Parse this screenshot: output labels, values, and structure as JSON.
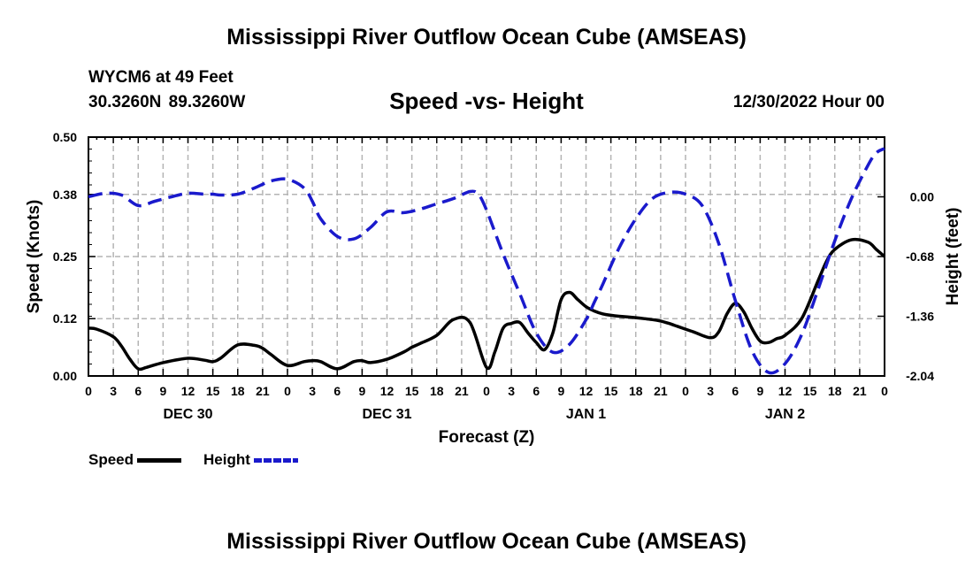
{
  "page": {
    "title": "Mississippi River Outflow Ocean Cube (AMSEAS)",
    "bottom_title": "Mississippi River Outflow Ocean Cube (AMSEAS)",
    "station": "WYCM6 at 49 Feet",
    "coordinates": "30.3260N  89.3260W",
    "subtitle": "Speed -vs- Height",
    "datetime": "12/30/2022 Hour 00"
  },
  "colors": {
    "speed": "#000000",
    "height": "#1a1acc",
    "grid": "#b4b4b4"
  },
  "chart_data": {
    "type": "line",
    "title": "Speed -vs- Height",
    "xlabel": "Forecast (Z)",
    "ylabel": "Speed (Knots)",
    "y2label": "Height (feet)",
    "xlim": [
      0,
      96
    ],
    "ylim": [
      0,
      0.5
    ],
    "y2lim": [
      -2.04,
      0.68
    ],
    "yticks": [
      "0.00",
      "0.12",
      "0.25",
      "0.38",
      "0.50"
    ],
    "y2ticks": [
      "-2.04",
      "-1.36",
      "-0.68",
      "0.00"
    ],
    "xtick_labels": [
      "0",
      "3",
      "6",
      "9",
      "12",
      "15",
      "18",
      "21",
      "0",
      "3",
      "6",
      "9",
      "12",
      "15",
      "18",
      "21",
      "0",
      "3",
      "6",
      "9",
      "12",
      "15",
      "18",
      "21",
      "0",
      "3",
      "6",
      "9",
      "12",
      "15",
      "18",
      "21",
      "0"
    ],
    "day_labels": [
      {
        "label": "DEC 30",
        "hour": 12
      },
      {
        "label": "DEC 31",
        "hour": 36
      },
      {
        "label": "JAN 1",
        "hour": 60
      },
      {
        "label": "JAN 2",
        "hour": 84
      }
    ],
    "grid": true,
    "legend": [
      {
        "name": "Speed",
        "style": "solid"
      },
      {
        "name": "Height",
        "style": "dashed"
      }
    ],
    "series": [
      {
        "name": "Speed",
        "axis": "left",
        "x": [
          0,
          1,
          3,
          4,
          5,
          6,
          7,
          9,
          12,
          14,
          15,
          16,
          18,
          20,
          21,
          22,
          24,
          26,
          27,
          28,
          30,
          32,
          33,
          34,
          36,
          38,
          39,
          40,
          42,
          44,
          46,
          48,
          49,
          50,
          51,
          52,
          53,
          54,
          55,
          56,
          57,
          58,
          59,
          60,
          61,
          62,
          63,
          64,
          66,
          67,
          68,
          69,
          70,
          71,
          72,
          73,
          75,
          76,
          77,
          78,
          79,
          80,
          81,
          82,
          83,
          84,
          86,
          88,
          89,
          90,
          92,
          94,
          95,
          96
        ],
        "values": [
          0.1,
          0.098,
          0.082,
          0.062,
          0.035,
          0.015,
          0.018,
          0.028,
          0.037,
          0.033,
          0.03,
          0.038,
          0.065,
          0.064,
          0.058,
          0.045,
          0.022,
          0.03,
          0.032,
          0.03,
          0.015,
          0.03,
          0.032,
          0.028,
          0.035,
          0.05,
          0.06,
          0.068,
          0.085,
          0.118,
          0.112,
          0.018,
          0.05,
          0.1,
          0.11,
          0.112,
          0.09,
          0.07,
          0.055,
          0.09,
          0.16,
          0.175,
          0.16,
          0.145,
          0.136,
          0.13,
          0.127,
          0.125,
          0.122,
          0.12,
          0.118,
          0.115,
          0.11,
          0.104,
          0.098,
          0.092,
          0.08,
          0.092,
          0.13,
          0.152,
          0.135,
          0.1,
          0.073,
          0.07,
          0.078,
          0.085,
          0.12,
          0.2,
          0.24,
          0.265,
          0.285,
          0.28,
          0.265,
          0.25
        ]
      },
      {
        "name": "Height",
        "axis": "right",
        "x": [
          0,
          2,
          4,
          6,
          8,
          10,
          12,
          14,
          15,
          16,
          18,
          20,
          22,
          24,
          26,
          27,
          28,
          30,
          32,
          34,
          36,
          38,
          40,
          42,
          44,
          46,
          47,
          48,
          50,
          52,
          54,
          56,
          58,
          60,
          61,
          62,
          64,
          66,
          68,
          70,
          72,
          74,
          76,
          78,
          80,
          82,
          84,
          86,
          88,
          90,
          92,
          94,
          95,
          96
        ],
        "values": [
          0.0,
          0.04,
          0.02,
          -0.1,
          -0.05,
          0.0,
          0.04,
          0.03,
          0.03,
          0.02,
          0.03,
          0.1,
          0.18,
          0.2,
          0.1,
          -0.05,
          -0.25,
          -0.45,
          -0.48,
          -0.35,
          -0.17,
          -0.18,
          -0.14,
          -0.08,
          -0.02,
          0.06,
          0.03,
          -0.15,
          -0.65,
          -1.1,
          -1.55,
          -1.77,
          -1.68,
          -1.4,
          -1.2,
          -1.0,
          -0.58,
          -0.25,
          -0.02,
          0.05,
          0.03,
          -0.1,
          -0.53,
          -1.18,
          -1.75,
          -2.0,
          -1.9,
          -1.57,
          -1.05,
          -0.5,
          -0.02,
          0.36,
          0.5,
          0.55
        ]
      }
    ]
  }
}
